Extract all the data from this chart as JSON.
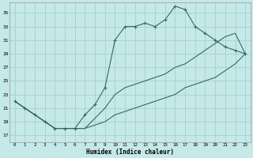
{
  "xlabel": "Humidex (Indice chaleur)",
  "bg_color": "#c5e8e8",
  "grid_color": "#a8d0d0",
  "line_color": "#2e6e62",
  "xlim": [
    -0.5,
    23.5
  ],
  "ylim": [
    16.0,
    36.5
  ],
  "xticks": [
    0,
    1,
    2,
    3,
    4,
    5,
    6,
    7,
    8,
    9,
    10,
    11,
    12,
    13,
    14,
    15,
    16,
    17,
    18,
    19,
    20,
    21,
    22,
    23
  ],
  "yticks": [
    17,
    19,
    21,
    23,
    25,
    27,
    29,
    31,
    33,
    35
  ],
  "curve1_x": [
    0,
    1,
    2,
    3,
    4,
    5,
    6,
    7,
    8,
    9,
    10,
    11,
    12,
    13,
    14,
    15,
    16,
    17,
    18,
    19,
    20,
    21,
    22,
    23
  ],
  "curve1_y": [
    22,
    21,
    20,
    19,
    18,
    18,
    18,
    20,
    21.5,
    24,
    31,
    33,
    33,
    33.5,
    33,
    34,
    36,
    35.5,
    33,
    32,
    31,
    30,
    29.5,
    29
  ],
  "curve2_x": [
    0,
    1,
    2,
    3,
    4,
    5,
    6,
    7,
    8,
    9,
    10,
    11,
    12,
    13,
    14,
    15,
    16,
    17,
    18,
    19,
    20,
    21,
    22,
    23
  ],
  "curve2_y": [
    22,
    21,
    20,
    19,
    18,
    18,
    18,
    18,
    18.5,
    19,
    20,
    20.5,
    21,
    21.5,
    22,
    22.5,
    23,
    24,
    24.5,
    25,
    25.5,
    26.5,
    27.5,
    29
  ],
  "curve3_x": [
    0,
    1,
    2,
    3,
    4,
    5,
    6,
    7,
    8,
    9,
    10,
    11,
    12,
    13,
    14,
    15,
    16,
    17,
    18,
    19,
    20,
    21,
    22,
    23
  ],
  "curve3_y": [
    22,
    21,
    20,
    19,
    18,
    18,
    18,
    18,
    19.5,
    21,
    23,
    24,
    24.5,
    25,
    25.5,
    26,
    27,
    27.5,
    28.5,
    29.5,
    30.5,
    31.5,
    32,
    29
  ]
}
